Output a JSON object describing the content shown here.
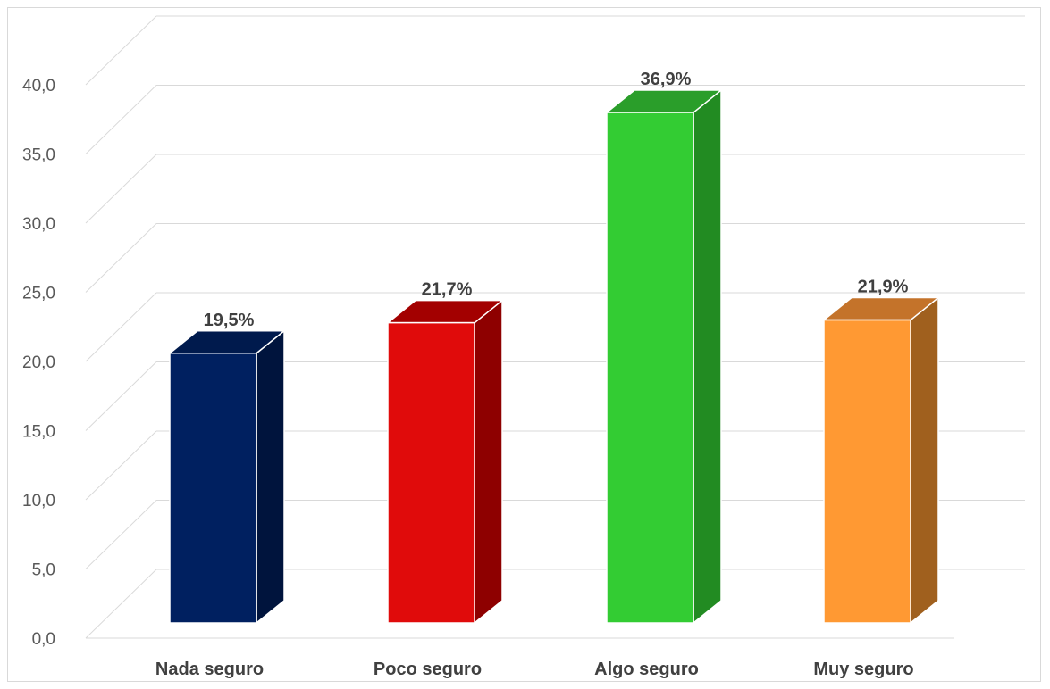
{
  "chart_data": {
    "type": "bar",
    "style": "3d-column",
    "categories": [
      "Nada seguro",
      "Poco seguro",
      "Algo seguro",
      "Muy seguro"
    ],
    "values": [
      19.5,
      21.7,
      36.9,
      21.9
    ],
    "data_labels": [
      "19,5%",
      "21,7%",
      "36,9%",
      "21,9%"
    ],
    "ylim": [
      0,
      40
    ],
    "ytick_labels": [
      "0,0",
      "5,0",
      "10,0",
      "15,0",
      "20,0",
      "25,0",
      "30,0",
      "35,0",
      "40,0"
    ],
    "grid": true,
    "legend": "none",
    "title": "",
    "xlabel": "",
    "ylabel": "",
    "colors": {
      "front": [
        "#002060",
        "#E00B0B",
        "#33CC33",
        "#FF9933"
      ],
      "side": [
        "#00143D",
        "#8E0000",
        "#228B22",
        "#A0601E"
      ],
      "top": [
        "#001A4D",
        "#A30000",
        "#2A9E2A",
        "#C4732A"
      ],
      "gridline": "#d9d9d9"
    }
  }
}
